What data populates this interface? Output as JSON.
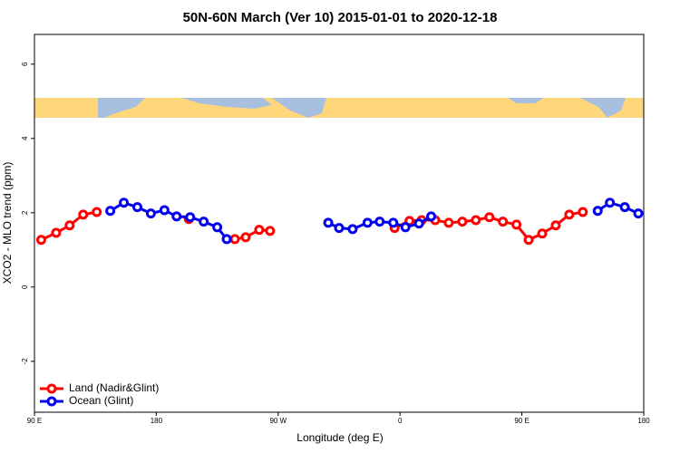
{
  "chart_data": {
    "type": "line",
    "title": "50N-60N March (Ver 10)   2015-01-01 to 2020-12-18",
    "x_label": "Longitude (deg E)",
    "y_label": "XCO2 - MLO trend (ppm)",
    "xlim": [
      -270,
      180
    ],
    "xticks": [
      {
        "value": -270,
        "label": "90 E"
      },
      {
        "value": -180,
        "label": "180"
      },
      {
        "value": -90,
        "label": "90 W"
      },
      0,
      {
        "value": 90,
        "label": "90 E"
      },
      {
        "value": 180,
        "label": "180"
      }
    ],
    "ylim": [
      -3.37,
      6.8
    ],
    "yticks": [
      -2,
      0,
      2,
      4,
      6
    ],
    "legend": "bottom-left",
    "series": [
      {
        "name": "Land (Nadir&Glint)",
        "color": "#ff0000",
        "x": [
          -265,
          -254,
          -244,
          -234,
          -224,
          null,
          -156,
          null,
          -122,
          -114,
          -104,
          -96,
          null,
          -4,
          7,
          16,
          26,
          36,
          46,
          56,
          66,
          76,
          86,
          95,
          105,
          115,
          125,
          135
        ],
        "values": [
          1.27,
          1.46,
          1.66,
          1.95,
          2.02,
          null,
          1.83,
          null,
          1.29,
          1.34,
          1.54,
          1.51,
          null,
          1.59,
          1.78,
          1.8,
          1.8,
          1.73,
          1.76,
          1.8,
          1.88,
          1.76,
          1.68,
          1.27,
          1.44,
          1.66,
          1.95,
          2.02
        ]
      },
      {
        "name": "Ocean (Glint)",
        "color": "#0000ee",
        "x": [
          -214,
          -204,
          -194,
          -184,
          -174,
          -165,
          -155,
          -145,
          -135,
          -128,
          null,
          -53,
          -45,
          -35,
          -24,
          -15,
          -5,
          4,
          14,
          23,
          null,
          146,
          155,
          166,
          176
        ],
        "values": [
          2.05,
          2.27,
          2.15,
          1.98,
          2.07,
          1.9,
          1.88,
          1.76,
          1.61,
          1.29,
          null,
          1.73,
          1.59,
          1.56,
          1.73,
          1.76,
          1.73,
          1.61,
          1.71,
          1.9,
          null,
          2.05,
          2.27,
          2.15,
          1.98
        ]
      }
    ]
  }
}
